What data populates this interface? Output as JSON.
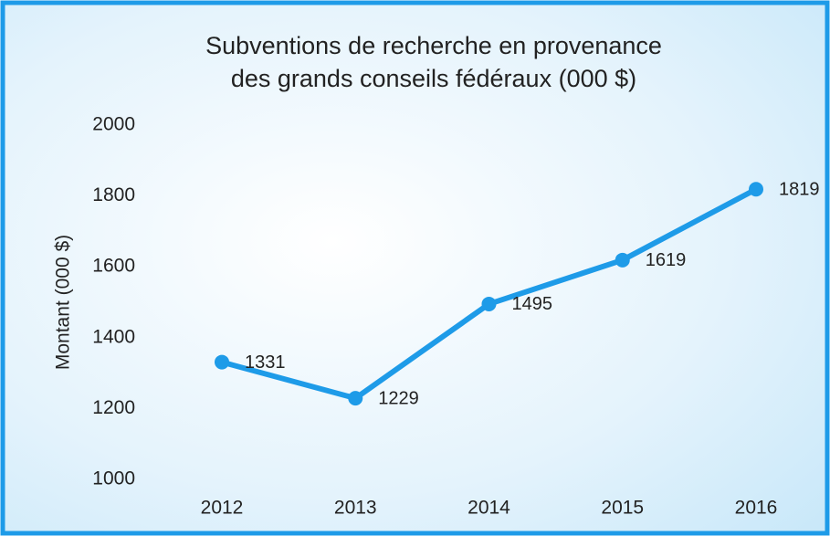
{
  "chart_data": {
    "type": "line",
    "title": [
      "Subventions de recherche en provenance",
      "des grands conseils fédéraux (000 $)"
    ],
    "y_label": "Montant (000 $)",
    "categories": [
      "2012",
      "2013",
      "2014",
      "2015",
      "2016"
    ],
    "series": [
      {
        "name": "Montant",
        "color": "#1e9be8",
        "values": [
          1331,
          1229,
          1495,
          1619,
          1819
        ]
      }
    ],
    "ylim": [
      1000,
      2000
    ],
    "yticks": [
      1000,
      1200,
      1400,
      1600,
      1800,
      2000
    ],
    "grid": false
  }
}
